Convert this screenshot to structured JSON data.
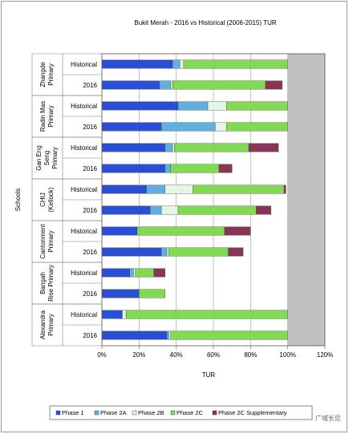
{
  "chart_data": {
    "type": "bar",
    "orientation": "horizontal",
    "stacked": true,
    "title": "Bukit Merah - 2016 vs Historical (2006-2015) TUR",
    "xlabel": "TUR",
    "ylabel": "Schools",
    "xlim": [
      0,
      120
    ],
    "xticks": [
      "0%",
      "20%",
      "40%",
      "60%",
      "80%",
      "100%",
      "120%"
    ],
    "shaded_region_from": 100,
    "legend_position": "bottom",
    "groups": [
      {
        "school": "Zhangde Primary",
        "label_lines": [
          "Zhangde",
          "Primary"
        ],
        "rows": [
          "Historical",
          "2016"
        ]
      },
      {
        "school": "Radin Mas Primary",
        "label_lines": [
          "Radin Mas",
          "Primary"
        ],
        "rows": [
          "Historical",
          "2016"
        ]
      },
      {
        "school": "Gan Eng Seng Primary",
        "label_lines": [
          "Gan Eng",
          "Seng",
          "Primary"
        ],
        "rows": [
          "Historical",
          "2016"
        ]
      },
      {
        "school": "CHIJ (Kellock)",
        "label_lines": [
          "CHIJ",
          "(Kellock)"
        ],
        "rows": [
          "Historical",
          "2016"
        ]
      },
      {
        "school": "Cantonment Primary",
        "label_lines": [
          "Cantonment",
          "Primary"
        ],
        "rows": [
          "Historical",
          "2016"
        ]
      },
      {
        "school": "Bangah Rise Primary",
        "label_lines": [
          "Bangah",
          "Rise Primary"
        ],
        "rows": [
          "Historical",
          "2016"
        ]
      },
      {
        "school": "Alexandra Primary",
        "label_lines": [
          "Alexandra",
          "Primary"
        ],
        "rows": [
          "Historical",
          "2016"
        ]
      }
    ],
    "series": [
      {
        "name": "Phase 1",
        "color": "#2a4fd6",
        "values": [
          38,
          31,
          41,
          32,
          34,
          34,
          24,
          26,
          19,
          32,
          15,
          20,
          11,
          35
        ]
      },
      {
        "name": "Phase 2A",
        "color": "#5fb0de",
        "values": [
          4,
          6,
          16,
          29,
          4,
          3,
          10,
          6,
          0,
          3,
          2,
          0,
          0,
          1
        ]
      },
      {
        "name": "Phase 2B",
        "color": "#e4f7e4",
        "values": [
          2,
          1,
          10,
          6,
          1,
          0,
          15,
          9,
          0,
          1,
          1,
          0,
          2,
          1
        ]
      },
      {
        "name": "Phase 2C",
        "color": "#82d952",
        "values": [
          56,
          50,
          33,
          33,
          40,
          26,
          49,
          42,
          47,
          32,
          10,
          14,
          87,
          63
        ]
      },
      {
        "name": "Phase 2C Supplementary",
        "color": "#8a3558",
        "values": [
          0,
          9,
          0,
          0,
          16,
          7,
          1,
          8,
          14,
          8,
          6,
          0,
          0,
          0
        ]
      }
    ]
  },
  "watermark": "广域长尼"
}
